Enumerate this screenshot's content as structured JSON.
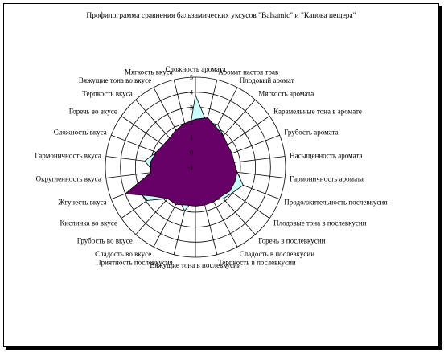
{
  "chart_data": {
    "type": "radar",
    "title": "Профилограмма сравнения бальзамических уксусов \"Balsamic\" и \"Капова пещера\"",
    "categories": [
      "Сложность аромата",
      "Аромат настоя трав",
      "Плодовый аромат",
      "Мягкость аромата",
      "Карамельные тона в аромате",
      "Грубость аромата",
      "Насыщенность аромата",
      "Гармоничность аромата",
      "Продолжительность послевкусия",
      "Плодовые тона в послевкусии",
      "Горечь в послевкусии",
      "Сладость в послевкусии",
      "Терпкость в послевкусии",
      "Вяжущие тона в послевкусии",
      "Приятность послевкусия",
      "Сладость во вкусе",
      "Грубость во вкусе",
      "Кислинка во вкусе",
      "Жгучесть вкуса",
      "Округленность вкуса",
      "Гармоничность вкуса",
      "Сложность вкуса",
      "Горечь во вкусе",
      "Терпкость вкуса",
      "Вяжущие тона во вкусе",
      "Мягкость вкуса"
    ],
    "tick_labels": [
      "-1",
      "0",
      "1",
      "2",
      "3",
      "4",
      "5"
    ],
    "rmin": -1,
    "rmax": 5,
    "series": [
      {
        "values": [
          3.8,
          2.1,
          2.2,
          1.8,
          1.2,
          1.0,
          1.0,
          1.8,
          2.4,
          2.0,
          1.8,
          1.5,
          1.4,
          1.0,
          2.0,
          1.4,
          1.8,
          2.9,
          3.2,
          1.8,
          2.4,
          1.8,
          1.4,
          1.2,
          1.0,
          1.0
        ],
        "color": "#ccffff"
      },
      {
        "values": [
          2.2,
          2.4,
          2.0,
          1.8,
          1.6,
          1.6,
          1.6,
          1.8,
          1.8,
          1.8,
          1.6,
          1.6,
          1.6,
          1.6,
          1.6,
          1.8,
          1.8,
          2.4,
          4.0,
          2.0,
          2.0,
          1.8,
          1.6,
          1.6,
          1.8,
          2.0
        ],
        "color": "#660066"
      }
    ],
    "grid": true
  }
}
